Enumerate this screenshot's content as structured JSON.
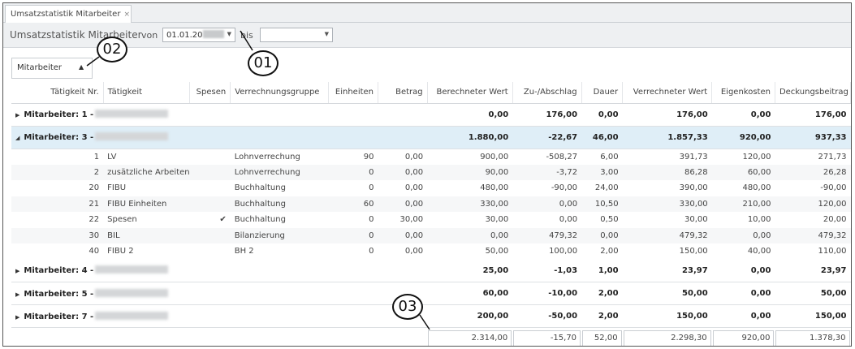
{
  "tab": {
    "title": "Umsatzstatistik Mitarbeiter",
    "close": "×"
  },
  "toolbar": {
    "title": "Umsatzstatistik Mitarbeiter",
    "von_label": "von",
    "von_value": "01.01.20",
    "bis_label": "bis",
    "bis_value": ""
  },
  "group_by": {
    "label": "Mitarbeiter"
  },
  "columns": [
    "Tätigkeit Nr.",
    "Tätigkeit",
    "Spesen",
    "Verrechnungsgruppe",
    "Einheiten",
    "Betrag",
    "Berechneter Wert",
    "Zu-/Abschlag",
    "Dauer",
    "Verrechneter Wert",
    "Eigenkosten",
    "Deckungsbeitrag"
  ],
  "groups": {
    "g1": {
      "label": "Mitarbeiter: 1 -",
      "berechnet": "0,00",
      "zuab": "176,00",
      "dauer": "0,00",
      "verrechnet": "176,00",
      "eigen": "0,00",
      "deckung": "176,00"
    },
    "g3": {
      "label": "Mitarbeiter: 3 -",
      "berechnet": "1.880,00",
      "zuab": "-22,67",
      "dauer": "46,00",
      "verrechnet": "1.857,33",
      "eigen": "920,00",
      "deckung": "937,33"
    },
    "g4": {
      "label": "Mitarbeiter: 4 -",
      "berechnet": "25,00",
      "zuab": "-1,03",
      "dauer": "1,00",
      "verrechnet": "23,97",
      "eigen": "0,00",
      "deckung": "23,97"
    },
    "g5": {
      "label": "Mitarbeiter: 5 -",
      "berechnet": "60,00",
      "zuab": "-10,00",
      "dauer": "2,00",
      "verrechnet": "50,00",
      "eigen": "0,00",
      "deckung": "50,00"
    },
    "g7": {
      "label": "Mitarbeiter: 7 -",
      "berechnet": "200,00",
      "zuab": "-50,00",
      "dauer": "2,00",
      "verrechnet": "150,00",
      "eigen": "0,00",
      "deckung": "150,00"
    }
  },
  "rows": [
    {
      "nr": "1",
      "taet": "LV",
      "spesen": "",
      "gruppe": "Lohnverrechung",
      "einh": "90",
      "betrag": "0,00",
      "berechnet": "900,00",
      "zuab": "-508,27",
      "dauer": "6,00",
      "verrechnet": "391,73",
      "eigen": "120,00",
      "deckung": "271,73"
    },
    {
      "nr": "2",
      "taet": "zusätzliche Arbeiten",
      "spesen": "",
      "gruppe": "Lohnverrechung",
      "einh": "0",
      "betrag": "0,00",
      "berechnet": "90,00",
      "zuab": "-3,72",
      "dauer": "3,00",
      "verrechnet": "86,28",
      "eigen": "60,00",
      "deckung": "26,28"
    },
    {
      "nr": "20",
      "taet": "FIBU",
      "spesen": "",
      "gruppe": "Buchhaltung",
      "einh": "0",
      "betrag": "0,00",
      "berechnet": "480,00",
      "zuab": "-90,00",
      "dauer": "24,00",
      "verrechnet": "390,00",
      "eigen": "480,00",
      "deckung": "-90,00"
    },
    {
      "nr": "21",
      "taet": "FIBU Einheiten",
      "spesen": "",
      "gruppe": "Buchhaltung",
      "einh": "60",
      "betrag": "0,00",
      "berechnet": "330,00",
      "zuab": "0,00",
      "dauer": "10,50",
      "verrechnet": "330,00",
      "eigen": "210,00",
      "deckung": "120,00"
    },
    {
      "nr": "22",
      "taet": "Spesen",
      "spesen": "✔",
      "gruppe": "Buchhaltung",
      "einh": "0",
      "betrag": "30,00",
      "berechnet": "30,00",
      "zuab": "0,00",
      "dauer": "0,50",
      "verrechnet": "30,00",
      "eigen": "10,00",
      "deckung": "20,00"
    },
    {
      "nr": "30",
      "taet": "BIL",
      "spesen": "",
      "gruppe": "Bilanzierung",
      "einh": "0",
      "betrag": "0,00",
      "berechnet": "0,00",
      "zuab": "479,32",
      "dauer": "0,00",
      "verrechnet": "479,32",
      "eigen": "0,00",
      "deckung": "479,32"
    },
    {
      "nr": "40",
      "taet": "FIBU 2",
      "spesen": "",
      "gruppe": "BH 2",
      "einh": "0",
      "betrag": "0,00",
      "berechnet": "50,00",
      "zuab": "100,00",
      "dauer": "2,00",
      "verrechnet": "150,00",
      "eigen": "40,00",
      "deckung": "110,00"
    }
  ],
  "totals": {
    "berechnet": "2.314,00",
    "zuab": "-15,70",
    "dauer": "52,00",
    "verrechnet": "2.298,30",
    "eigen": "920,00",
    "deckung": "1.378,30"
  },
  "callouts": {
    "c01": "01",
    "c02": "02",
    "c03": "03"
  }
}
